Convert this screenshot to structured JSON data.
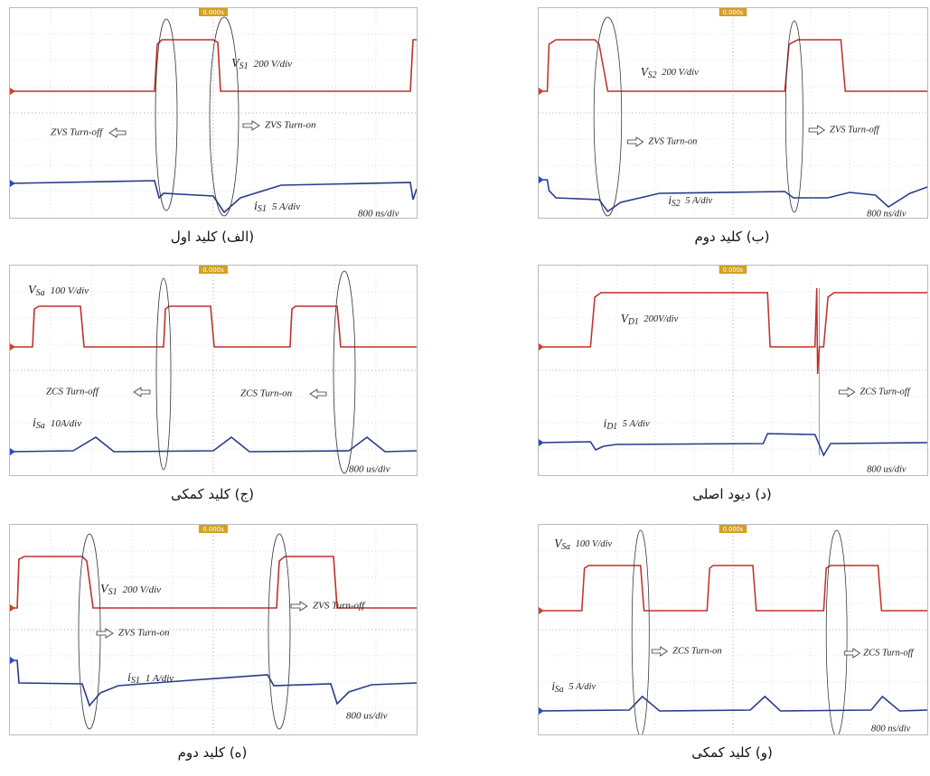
{
  "panels": [
    {
      "caption": "(الف) کلید اول",
      "trigger": "0.000s",
      "timebase": "800 ns/div",
      "voltage": {
        "symbol": "V",
        "subscript": "S1",
        "scale": "200 V/div"
      },
      "current": {
        "symbol": "i",
        "subscript": "S1",
        "scale": "5 A/div"
      },
      "annotations": [
        "ZVS Turn-off",
        "ZVS Turn-on"
      ]
    },
    {
      "caption": "(ب) کلید دوم",
      "trigger": "0.000s",
      "timebase": "800 ns/div",
      "voltage": {
        "symbol": "V",
        "subscript": "S2",
        "scale": "200 V/div"
      },
      "current": {
        "symbol": "i",
        "subscript": "S2",
        "scale": "5 A/div"
      },
      "annotations": [
        "ZVS Turn-on",
        "ZVS Turn-off"
      ]
    },
    {
      "caption": "(ج) کلید کمکی",
      "trigger": "0.000s",
      "timebase": "800 us/div",
      "voltage": {
        "symbol": "V",
        "subscript": "Sa",
        "scale": "100 V/div"
      },
      "current": {
        "symbol": "i",
        "subscript": "Sa",
        "scale": "10A/div"
      },
      "annotations": [
        "ZCS Turn-off",
        "ZCS Turn-on"
      ]
    },
    {
      "caption": "(د) دیود اصلی",
      "trigger": "0.000s",
      "timebase": "800 us/div",
      "voltage": {
        "symbol": "V",
        "subscript": "D1",
        "scale": "200V/div"
      },
      "current": {
        "symbol": "i",
        "subscript": "D1",
        "scale": "5 A/div"
      },
      "annotations": [
        "ZCS Turn-off"
      ]
    },
    {
      "caption": "(ه) کلید دوم",
      "trigger": "0.000s",
      "timebase": "800 us/div",
      "voltage": {
        "symbol": "V",
        "subscript": "S1",
        "scale": "200 V/div"
      },
      "current": {
        "symbol": "i",
        "subscript": "S1",
        "scale": "1 A/div"
      },
      "annotations": [
        "ZVS Turn-on",
        "ZVS Turn-off"
      ]
    },
    {
      "caption": "(و) کلید کمکی",
      "trigger": "0.000s",
      "timebase": "800 ns/div",
      "voltage": {
        "symbol": "V",
        "subscript": "Sa",
        "scale": "100 V/div"
      },
      "current": {
        "symbol": "i",
        "subscript": "Sa",
        "scale": "5 A/div"
      },
      "annotations": [
        "ZCS Turn-on",
        "ZCS Turn-off"
      ]
    }
  ]
}
